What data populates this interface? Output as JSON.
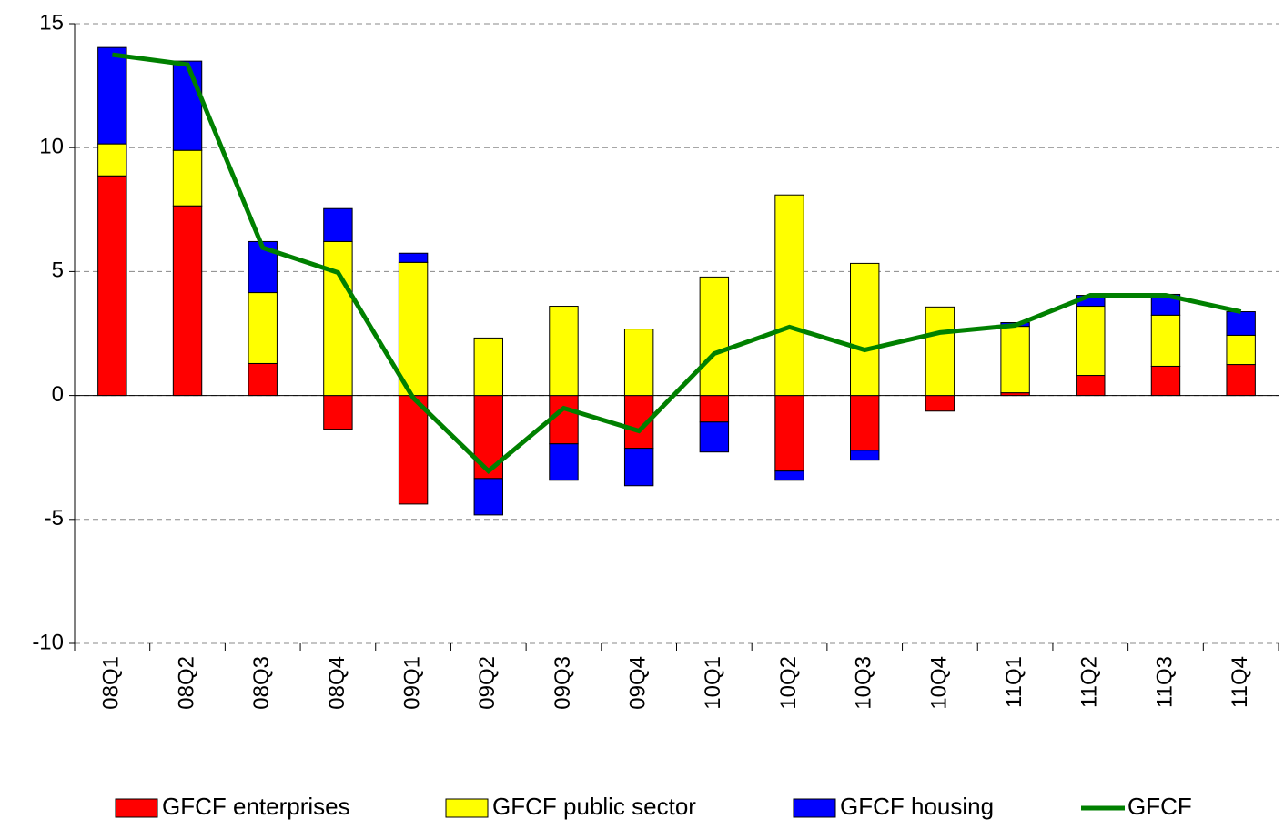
{
  "chart_data": {
    "type": "bar",
    "categories": [
      "08Q1",
      "08Q2",
      "08Q3",
      "08Q4",
      "09Q1",
      "09Q2",
      "09Q3",
      "09Q4",
      "10Q1",
      "10Q2",
      "10Q3",
      "10Q4",
      "11Q1",
      "11Q2",
      "11Q3",
      "11Q4"
    ],
    "series": [
      {
        "name": "GFCF enterprises",
        "color": "#ff0000",
        "values": [
          8.86,
          7.65,
          1.29,
          -1.36,
          -4.38,
          -3.35,
          -1.95,
          -2.13,
          -1.07,
          -3.05,
          -2.21,
          -0.63,
          0.11,
          0.81,
          1.18,
          1.25
        ]
      },
      {
        "name": "GFCF public sector",
        "color": "#ffff00",
        "values": [
          1.29,
          2.24,
          2.86,
          6.21,
          5.37,
          2.32,
          3.6,
          2.68,
          4.78,
          8.09,
          5.33,
          3.57,
          2.68,
          2.79,
          2.06,
          1.18
        ]
      },
      {
        "name": "GFCF housing",
        "color": "#0000ff",
        "values": [
          3.89,
          3.6,
          2.06,
          1.33,
          0.37,
          -1.47,
          -1.47,
          -1.51,
          -1.21,
          -0.37,
          -0.4,
          0,
          0.15,
          0.44,
          0.84,
          0.95
        ]
      },
      {
        "name": "GFCF",
        "color": "#008000",
        "type": "line",
        "values": [
          13.75,
          13.35,
          5.96,
          4.96,
          -0.1,
          -3.05,
          -0.51,
          -1.43,
          1.69,
          2.76,
          1.84,
          2.54,
          2.83,
          4.04,
          4.04,
          3.38
        ]
      }
    ],
    "ylim": [
      -10,
      15
    ],
    "yticks": [
      -10,
      -5,
      0,
      5,
      10,
      15
    ],
    "grid": true,
    "legend": "bottom",
    "stacked": true
  }
}
